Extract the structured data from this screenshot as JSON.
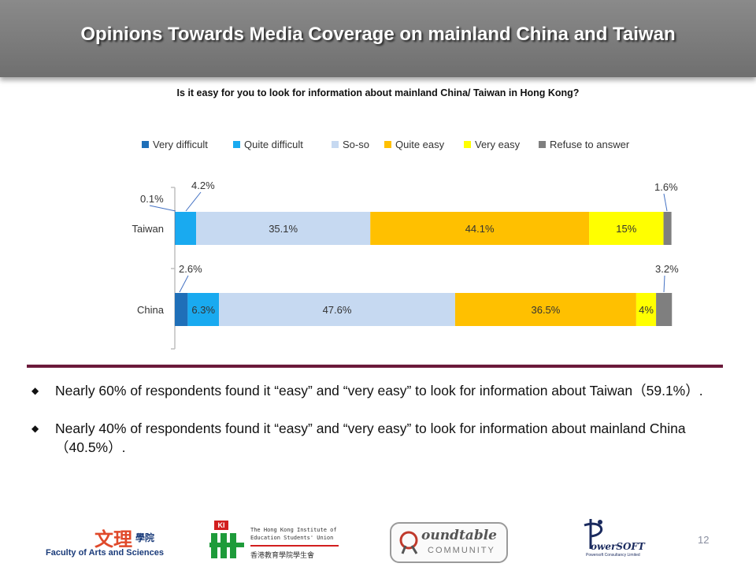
{
  "slide": {
    "title": "Opinions Towards Media Coverage on mainland China and Taiwan",
    "page_number": "12"
  },
  "chart_data": {
    "type": "bar",
    "orientation": "horizontal",
    "stacked": true,
    "title": "Is it easy for you to look for information about mainland China/ Taiwan in Hong Kong?",
    "categories": [
      "Taiwan",
      "China"
    ],
    "legend_position": "top",
    "xlim": [
      0,
      100
    ],
    "series": [
      {
        "name": "Very difficult",
        "color": "#1f6fb8",
        "values": [
          0.1,
          2.6
        ],
        "labels": [
          "0.1%",
          "2.6%"
        ]
      },
      {
        "name": "Quite difficult",
        "color": "#19aaf0",
        "values": [
          4.2,
          6.3
        ],
        "labels": [
          "4.2%",
          "6.3%"
        ]
      },
      {
        "name": "So-so",
        "color": "#c6d9f1",
        "values": [
          35.1,
          47.6
        ],
        "labels": [
          "35.1%",
          "47.6%"
        ]
      },
      {
        "name": "Quite easy",
        "color": "#ffc000",
        "values": [
          44.1,
          36.5
        ],
        "labels": [
          "44.1%",
          "36.5%"
        ]
      },
      {
        "name": "Very easy",
        "color": "#ffff00",
        "values": [
          15,
          4
        ],
        "labels": [
          "15%",
          "4%"
        ]
      },
      {
        "name": "Refuse to answer",
        "color": "#7f7f7f",
        "values": [
          1.6,
          3.2
        ],
        "labels": [
          "1.6%",
          "3.2%"
        ]
      }
    ]
  },
  "bullets": [
    "Nearly 60% of respondents found it “easy” and “very easy” to look for information about Taiwan（59.1%）.",
    "Nearly 40% of respondents found it “easy” and “very easy” to look for information about mainland China（40.5%）."
  ],
  "logos": {
    "arts_faculty": {
      "chinese": "文理",
      "chinese_small": "學院",
      "english": "Faculty of Arts and Sciences"
    },
    "union": {
      "mark": "KI",
      "line1": "The Hong Kong Institute of",
      "line2": "Education Students' Union",
      "chinese": "香港教育學院學生會"
    },
    "roundtable": {
      "line1": "oundtable",
      "line2": "COMMUNITY"
    },
    "powersoft": {
      "name": "owerSOFT",
      "sub": "Powersoft Consultancy Limited"
    }
  }
}
